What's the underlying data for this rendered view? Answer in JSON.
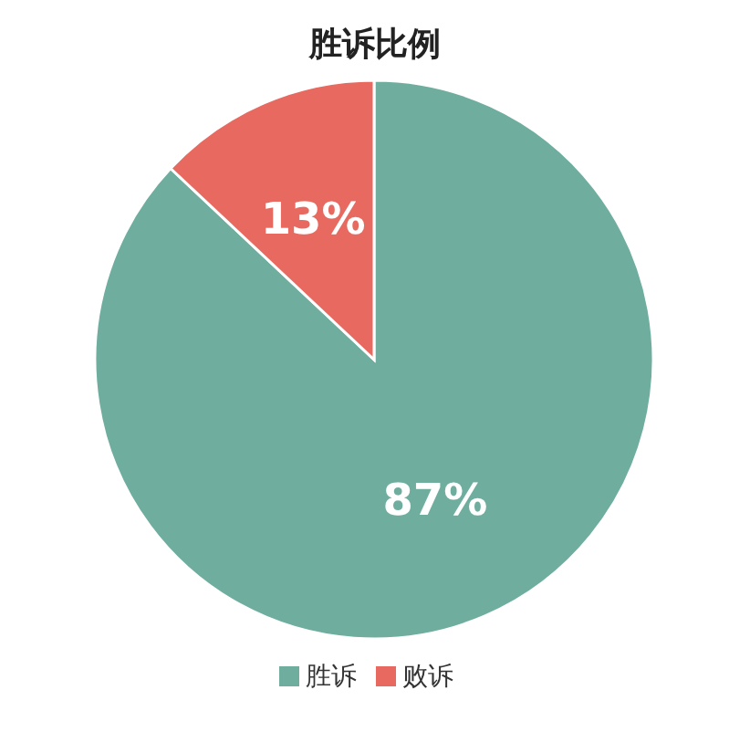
{
  "chart_data": {
    "type": "pie",
    "title": "胜诉比例",
    "categories": [
      "胜诉",
      "败诉"
    ],
    "values": [
      87,
      13
    ],
    "colors": [
      "#6fae9f",
      "#e8695f"
    ],
    "value_labels": [
      "87%",
      "13%"
    ],
    "legend": "bottom"
  }
}
